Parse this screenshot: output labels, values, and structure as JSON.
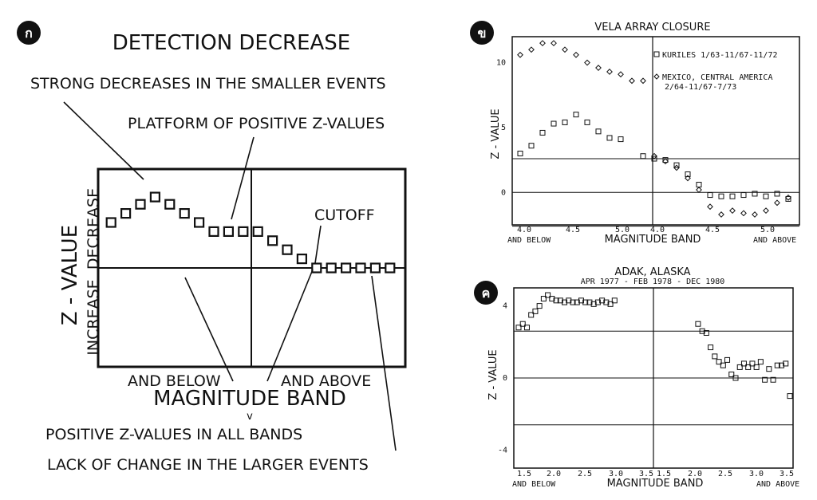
{
  "chart_data": [
    {
      "type": "scatter",
      "badge": "ก",
      "title": "DETECTION DECREASE",
      "ylabel": "Z - VALUE",
      "ylabel_up": "DECREASE",
      "ylabel_down": "INCREASE",
      "xlabel": "MAGNITUDE BAND",
      "x_left_label": "AND BELOW",
      "x_right_label": "AND ABOVE",
      "x_mark": "v",
      "annotations": {
        "strong": "STRONG DECREASES IN THE SMALLER EVENTS",
        "platform": "PLATFORM OF POSITIVE Z-VALUES",
        "cutoff": "CUTOFF",
        "positive": "POSITIVE Z-VALUES IN ALL BANDS",
        "lack": "LACK OF CHANGE IN THE LARGER EVENTS"
      },
      "ylim": [
        -5,
        5
      ],
      "xlim": [
        0,
        20
      ],
      "panel_split": 10,
      "series": [
        {
          "x": [
            1,
            2,
            3,
            4,
            5,
            6,
            7,
            8,
            9,
            10,
            11,
            12,
            13,
            14,
            15,
            16,
            17,
            18,
            19,
            20
          ],
          "y": [
            2.5,
            3.0,
            3.5,
            3.9,
            3.5,
            3.0,
            2.5,
            2.0,
            2.0,
            2.0,
            2.0,
            1.5,
            1.0,
            0.5,
            0,
            0,
            0,
            0,
            0,
            0
          ]
        }
      ]
    },
    {
      "type": "scatter",
      "badge": "ข",
      "title": "VELA ARRAY CLOSURE",
      "ylabel": "Z - VALUE",
      "xlabel": "MAGNITUDE BAND",
      "x_left_label": "AND BELOW",
      "x_right_label": "AND ABOVE",
      "ylim": [
        -2.5,
        12
      ],
      "yticks": [
        0,
        5,
        10
      ],
      "hlines": [
        2.6,
        0,
        -2.6
      ],
      "x_left_ticks": [
        "4.0",
        "4.5",
        "5.0"
      ],
      "x_right_ticks": [
        "4.0",
        "4.5",
        "5.0"
      ],
      "legend": [
        "KURILES 1/63-11/67-11/72",
        "MEXICO, CENTRAL AMERICA",
        "2/64-11/67-7/73"
      ],
      "series": [
        {
          "name": "KURILES 1/63-11/67-11/72",
          "marker": "square",
          "x": [
            4.0,
            4.1,
            4.2,
            4.3,
            4.4,
            4.5,
            4.6,
            4.7,
            4.8,
            4.9,
            5.1,
            5.2,
            5.3,
            5.4,
            5.5,
            5.6,
            5.7,
            5.8,
            5.9,
            6.0,
            6.1,
            6.2,
            6.3,
            6.4
          ],
          "y": [
            3.0,
            3.6,
            4.6,
            5.3,
            5.4,
            6.0,
            5.4,
            4.7,
            4.2,
            4.1,
            2.8,
            2.6,
            2.5,
            2.1,
            1.4,
            0.6,
            -0.2,
            -0.3,
            -0.3,
            -0.2,
            -0.1,
            -0.3,
            -0.1,
            -0.5
          ]
        },
        {
          "name": "MEXICO, CENTRAL AMERICA",
          "marker": "diamond",
          "x": [
            4.0,
            4.1,
            4.2,
            4.3,
            4.4,
            4.5,
            4.6,
            4.7,
            4.8,
            4.9,
            5.0,
            5.1,
            5.2,
            5.3,
            5.4,
            5.5,
            5.6,
            5.7,
            5.8,
            5.9,
            6.0,
            6.1,
            6.2,
            6.3,
            6.4
          ],
          "y": [
            10.6,
            11.0,
            11.5,
            11.5,
            11.0,
            10.6,
            10.0,
            9.6,
            9.3,
            9.1,
            8.6,
            8.6,
            2.8,
            2.4,
            1.9,
            1.1,
            0.2,
            -1.1,
            -1.7,
            -1.4,
            -1.6,
            -1.7,
            -1.4,
            -0.8,
            -0.4
          ]
        }
      ]
    },
    {
      "type": "scatter",
      "badge": "ค",
      "title": "ADAK, ALASKA",
      "subtitle": "APR 1977 - FEB 1978 - DEC 1980",
      "ylabel": "Z - VALUE",
      "xlabel": "MAGNITUDE BAND",
      "x_left_label": "AND BELOW",
      "x_right_label": "AND ABOVE",
      "ylim": [
        -5,
        5
      ],
      "yticks": [
        -4,
        0,
        4
      ],
      "hlines": [
        2.6,
        0,
        -2.6
      ],
      "x_left_ticks": [
        "1.5",
        "2.0",
        "2.5",
        "3.0",
        "3.5"
      ],
      "x_right_ticks": [
        "1.5",
        "2.0",
        "2.5",
        "3.0",
        "3.5"
      ],
      "series": [
        {
          "marker": "square",
          "x": [
            1.2,
            1.3,
            1.4,
            1.5,
            1.6,
            1.7,
            1.8,
            1.9,
            2.0,
            2.1,
            2.2,
            2.3,
            2.4,
            2.5,
            2.6,
            2.7,
            2.8,
            2.9,
            3.0,
            3.1,
            3.2,
            3.3,
            3.4,
            3.5,
            5.5,
            5.6,
            5.7,
            5.8,
            5.9,
            6.0,
            6.1,
            6.2,
            6.3,
            6.4,
            6.5,
            6.6,
            6.7,
            6.8,
            6.9,
            7.0,
            7.1,
            7.2,
            7.3,
            7.4,
            7.5,
            7.6,
            7.7
          ],
          "y": [
            2.8,
            3.0,
            2.8,
            3.5,
            3.7,
            4.0,
            4.4,
            4.6,
            4.4,
            4.3,
            4.3,
            4.2,
            4.3,
            4.2,
            4.2,
            4.3,
            4.2,
            4.2,
            4.1,
            4.2,
            4.3,
            4.2,
            4.1,
            4.3,
            3.0,
            2.6,
            2.5,
            1.7,
            1.2,
            0.9,
            0.7,
            1.0,
            0.2,
            0.0,
            0.6,
            0.8,
            0.6,
            0.8,
            0.6,
            0.9,
            -0.1,
            0.5,
            -0.1,
            0.7,
            0.7,
            0.8,
            -1.0
          ]
        }
      ]
    }
  ]
}
